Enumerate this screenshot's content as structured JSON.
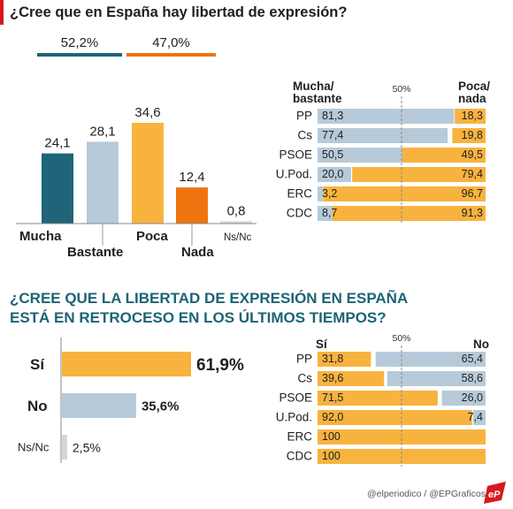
{
  "colors": {
    "accent_red": "#d7171f",
    "teal": "#1f6478",
    "light_blue": "#b7cad9",
    "yellow": "#f8b33f",
    "orange": "#ee7410",
    "grey": "#d9d6d2",
    "title_teal": "#1b6475"
  },
  "header": {
    "title": "¿Cree que en España hay libertad de expresión?"
  },
  "chart_data": [
    {
      "type": "bar",
      "title": "¿Cree que en España hay libertad de expresión?",
      "categories": [
        "Mucha",
        "Bastante",
        "Poca",
        "Nada",
        "Ns/Nc"
      ],
      "values": [
        24.1,
        28.1,
        34.6,
        12.4,
        0.8
      ],
      "value_labels": [
        "24,1",
        "28,1",
        "34,6",
        "12,4",
        "0,8"
      ],
      "group_totals": [
        {
          "label": "52,2%",
          "members": [
            "Mucha",
            "Bastante"
          ],
          "color": "#1f6478"
        },
        {
          "label": "47,0%",
          "members": [
            "Poca",
            "Nada"
          ],
          "color": "#ee7410"
        }
      ],
      "colors": [
        "#1f6478",
        "#b7cad9",
        "#f8b33f",
        "#ee7410",
        "#d9d6d2"
      ],
      "ylim": [
        0,
        40
      ]
    },
    {
      "type": "bar",
      "orientation": "horizontal-stacked",
      "left_header": "Mucha/\nbastante",
      "mid_header": "50%",
      "right_header": "Poca/\nnada",
      "categories": [
        "PP",
        "Cs",
        "PSOE",
        "U.Pod.",
        "ERC",
        "CDC"
      ],
      "series": [
        {
          "values": [
            81.3,
            77.4,
            50.5,
            20.0,
            3.2,
            8.7
          ],
          "labels": [
            "81,3",
            "77,4",
            "50,5",
            "20,0",
            "3,2",
            "8,7"
          ],
          "color": "#b7cad9"
        },
        {
          "values": [
            18.3,
            19.8,
            49.5,
            79.4,
            96.7,
            91.3
          ],
          "labels": [
            "18,3",
            "19,8",
            "49,5",
            "79,4",
            "96,7",
            "91,3"
          ],
          "color": "#f8b33f"
        }
      ],
      "xlim": [
        0,
        100
      ]
    },
    {
      "type": "bar",
      "orientation": "horizontal",
      "title": "¿CREE QUE LA LIBERTAD DE EXPRESIÓN EN ESPAÑA\nESTÁ EN RETROCESO EN LOS ÚLTIMOS TIEMPOS?",
      "categories": [
        "Sí",
        "No",
        "Ns/Nc"
      ],
      "values": [
        61.9,
        35.6,
        2.5
      ],
      "value_labels": [
        "61,9%",
        "35,6%",
        "2,5%"
      ],
      "colors": [
        "#f8b33f",
        "#b7cad9",
        "#d9d6d2"
      ],
      "xlim": [
        0,
        70
      ]
    },
    {
      "type": "bar",
      "orientation": "horizontal-stacked",
      "left_header": "Sí",
      "mid_header": "50%",
      "right_header": "No",
      "categories": [
        "PP",
        "Cs",
        "PSOE",
        "U.Pod.",
        "ERC",
        "CDC"
      ],
      "series": [
        {
          "values": [
            31.8,
            39.6,
            71.5,
            92.0,
            100,
            100
          ],
          "labels": [
            "31,8",
            "39,6",
            "71,5",
            "92,0",
            "100",
            "100"
          ],
          "color": "#f8b33f"
        },
        {
          "values": [
            65.4,
            58.6,
            26.0,
            7.4,
            0,
            0
          ],
          "labels": [
            "65,4",
            "58,6",
            "26,0",
            "7,4",
            "",
            ""
          ],
          "color": "#b7cad9"
        }
      ],
      "xlim": [
        0,
        100
      ]
    }
  ],
  "footer": {
    "credit": "@elperiodico / @EPGraficos",
    "logo_text": "eP"
  }
}
